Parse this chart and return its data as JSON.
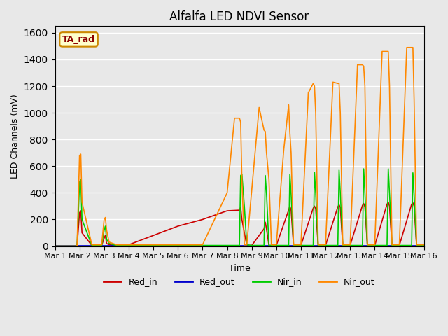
{
  "title": "Alfalfa LED NDVI Sensor",
  "xlabel": "Time",
  "ylabel": "LED Channels (mV)",
  "ylim": [
    0,
    1650
  ],
  "xlim": [
    0,
    15
  ],
  "xtick_positions": [
    0,
    1,
    2,
    3,
    4,
    5,
    6,
    7,
    8,
    9,
    10,
    11,
    12,
    13,
    14,
    15
  ],
  "xtick_labels": [
    "Mar 1",
    "Mar 2",
    "Mar 3",
    "Mar 4",
    "Mar 5",
    "Mar 6",
    "Mar 7",
    "Mar 8",
    "Mar 9",
    "Mar 10",
    "Mar 11",
    "Mar 12",
    "Mar 13",
    "Mar 14",
    "Mar 15",
    "Mar 16"
  ],
  "background_color": "#e8e8e8",
  "plot_bg_color": "#e8e8e8",
  "legend_label": "TA_rad",
  "series": {
    "Red_in": {
      "color": "#cc0000",
      "x": [
        0.0,
        0.9,
        1.0,
        1.05,
        1.1,
        1.5,
        1.9,
        2.0,
        2.05,
        2.1,
        2.2,
        2.5,
        3.0,
        4.0,
        5.0,
        6.0,
        7.0,
        7.5,
        7.55,
        7.6,
        7.7,
        7.8,
        8.0,
        8.5,
        8.55,
        8.6,
        8.7,
        9.0,
        9.5,
        9.55,
        9.6,
        9.7,
        10.0,
        10.5,
        10.55,
        10.6,
        10.7,
        11.0,
        11.5,
        11.55,
        11.6,
        11.7,
        12.0,
        12.5,
        12.55,
        12.6,
        12.7,
        13.0,
        13.5,
        13.55,
        13.6,
        13.7,
        14.0,
        14.5,
        14.55,
        14.6,
        14.7,
        15.0
      ],
      "y": [
        0,
        0,
        250,
        265,
        100,
        5,
        5,
        60,
        80,
        20,
        10,
        5,
        10,
        80,
        150,
        200,
        265,
        270,
        290,
        200,
        100,
        5,
        5,
        130,
        180,
        130,
        5,
        5,
        270,
        300,
        270,
        5,
        5,
        285,
        300,
        280,
        5,
        5,
        295,
        310,
        290,
        5,
        5,
        305,
        320,
        295,
        5,
        5,
        315,
        330,
        300,
        5,
        5,
        315,
        325,
        300,
        5,
        5
      ]
    },
    "Red_out": {
      "color": "#0000cc",
      "x": [
        0.0,
        15.0
      ],
      "y": [
        5,
        5
      ]
    },
    "Nir_in": {
      "color": "#00cc00",
      "x": [
        0.0,
        0.9,
        1.0,
        1.05,
        1.1,
        1.5,
        1.9,
        2.0,
        2.05,
        2.1,
        2.2,
        2.5,
        3.0,
        4.0,
        5.0,
        6.0,
        7.0,
        7.5,
        7.55,
        7.6,
        7.7,
        7.8,
        8.0,
        8.5,
        8.55,
        8.6,
        8.7,
        9.0,
        9.5,
        9.55,
        9.6,
        9.7,
        10.0,
        10.5,
        10.55,
        10.6,
        10.7,
        11.0,
        11.5,
        11.55,
        11.6,
        11.7,
        12.0,
        12.5,
        12.55,
        12.6,
        12.7,
        13.0,
        13.5,
        13.55,
        13.6,
        13.7,
        14.0,
        14.5,
        14.55,
        14.6,
        14.7,
        15.0
      ],
      "y": [
        0,
        0,
        480,
        500,
        200,
        5,
        5,
        120,
        150,
        50,
        20,
        5,
        5,
        5,
        5,
        5,
        5,
        5,
        530,
        540,
        300,
        10,
        5,
        5,
        530,
        400,
        5,
        5,
        5,
        540,
        390,
        5,
        5,
        5,
        555,
        400,
        5,
        5,
        5,
        570,
        400,
        5,
        5,
        5,
        580,
        400,
        5,
        5,
        5,
        580,
        400,
        5,
        5,
        5,
        550,
        390,
        5,
        5
      ]
    },
    "Nir_out": {
      "color": "#ff8800",
      "x": [
        0.0,
        0.9,
        1.0,
        1.05,
        1.1,
        1.5,
        1.9,
        2.0,
        2.05,
        2.1,
        2.2,
        2.5,
        3.0,
        4.0,
        5.0,
        6.0,
        7.0,
        7.3,
        7.5,
        7.55,
        7.6,
        7.7,
        7.8,
        8.0,
        8.3,
        8.5,
        8.55,
        8.6,
        8.7,
        8.8,
        9.0,
        9.3,
        9.5,
        9.55,
        9.6,
        9.7,
        9.8,
        10.0,
        10.3,
        10.5,
        10.55,
        10.6,
        10.7,
        10.8,
        11.0,
        11.3,
        11.5,
        11.55,
        11.6,
        11.7,
        11.8,
        12.0,
        12.3,
        12.5,
        12.55,
        12.6,
        12.7,
        12.8,
        13.0,
        13.3,
        13.5,
        13.55,
        13.6,
        13.7,
        13.8,
        14.0,
        14.3,
        14.5,
        14.55,
        14.6,
        14.7,
        14.8,
        15.0
      ],
      "y": [
        0,
        0,
        680,
        690,
        330,
        10,
        10,
        200,
        215,
        120,
        30,
        10,
        10,
        10,
        10,
        10,
        400,
        960,
        960,
        930,
        500,
        10,
        10,
        420,
        1040,
        870,
        860,
        700,
        500,
        10,
        10,
        720,
        1060,
        850,
        700,
        10,
        10,
        10,
        1150,
        1220,
        1200,
        1000,
        10,
        10,
        10,
        1230,
        1220,
        1220,
        1000,
        10,
        10,
        10,
        1360,
        1360,
        1350,
        1200,
        10,
        10,
        10,
        1460,
        1460,
        1460,
        1200,
        10,
        10,
        10,
        1490,
        1490,
        1490,
        1100,
        10,
        10,
        10
      ]
    }
  }
}
